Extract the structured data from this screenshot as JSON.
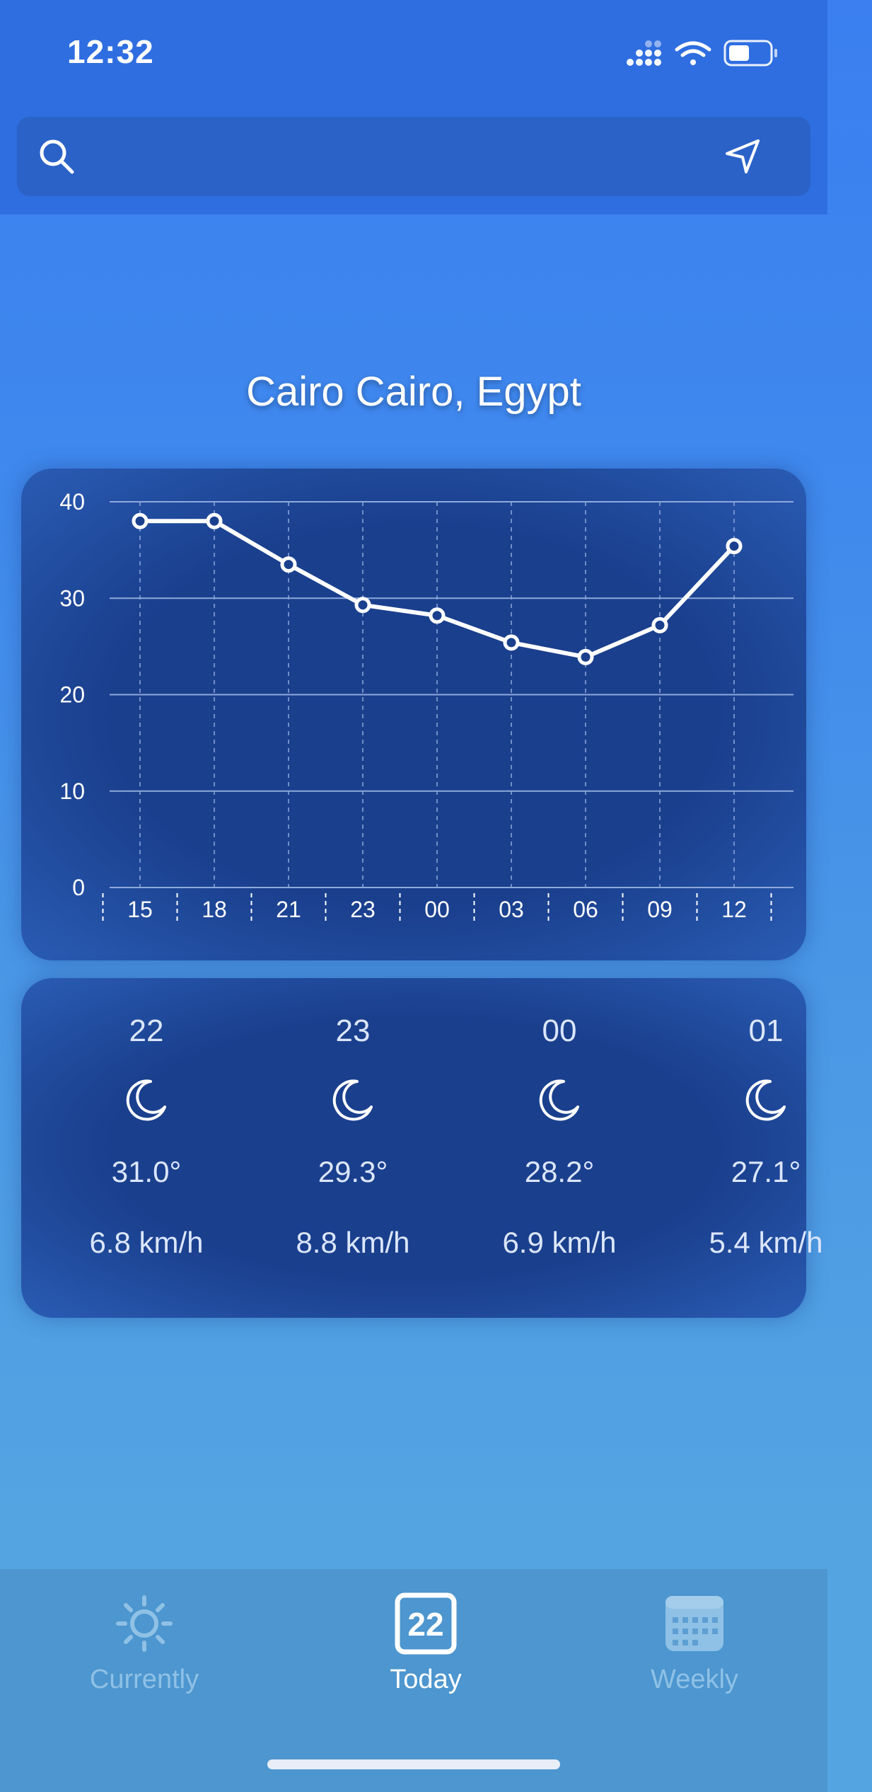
{
  "status_bar": {
    "time": "12:32"
  },
  "search": {
    "placeholder": ""
  },
  "location": {
    "title": "Cairo Cairo, Egypt"
  },
  "chart_data": {
    "type": "line",
    "categories": [
      "15",
      "18",
      "21",
      "23",
      "00",
      "03",
      "06",
      "09",
      "12"
    ],
    "series": [
      {
        "values": [
          38,
          38,
          33.5,
          29.3,
          28.2,
          25.4,
          23.9,
          27.2,
          35.4
        ]
      }
    ],
    "ylim": [
      0,
      40
    ],
    "yticks": [
      0,
      10,
      20,
      30,
      40
    ],
    "grid": true,
    "colors": {
      "line": "#ffffff",
      "grid": "#8ea9dc"
    }
  },
  "forecast": [
    {
      "hour": "22",
      "icon": "moon-icon",
      "temp": "31.0°",
      "wind": "6.8 km/h"
    },
    {
      "hour": "23",
      "icon": "moon-icon",
      "temp": "29.3°",
      "wind": "8.8 km/h"
    },
    {
      "hour": "00",
      "icon": "moon-icon",
      "temp": "28.2°",
      "wind": "6.9 km/h"
    },
    {
      "hour": "01",
      "icon": "moon-icon",
      "temp": "27.1°",
      "wind": "5.4 km/h"
    }
  ],
  "tabs": [
    {
      "label": "Currently",
      "icon": "sun-icon",
      "active": false
    },
    {
      "label": "Today",
      "icon": "calendar-day-icon",
      "badge": "22",
      "active": true
    },
    {
      "label": "Weekly",
      "icon": "calendar-grid-icon",
      "active": false
    }
  ],
  "colors": {
    "accent": "#3b7ff0",
    "card": "#1a3f8d",
    "inactive_tab": "#8fc1e6"
  }
}
